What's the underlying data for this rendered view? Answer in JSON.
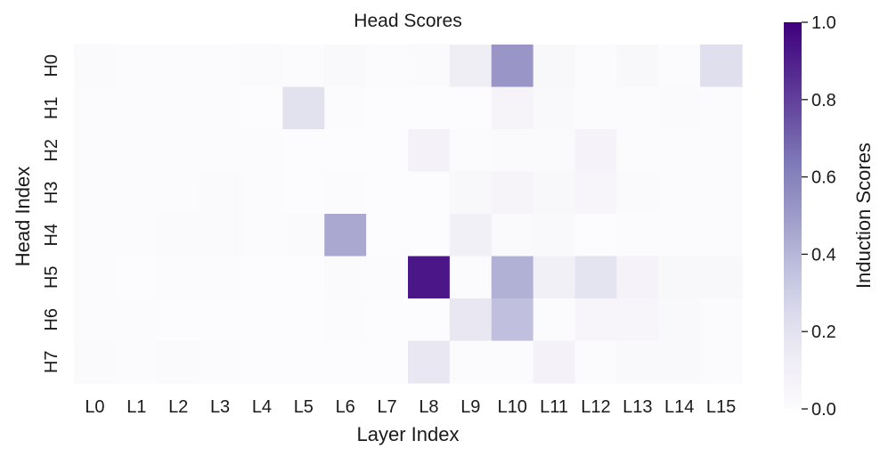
{
  "chart_data": {
    "type": "heatmap",
    "title": "Head Scores",
    "xlabel": "Layer Index",
    "ylabel": "Head Index",
    "x_categories": [
      "L0",
      "L1",
      "L2",
      "L3",
      "L4",
      "L5",
      "L6",
      "L7",
      "L8",
      "L9",
      "L10",
      "L11",
      "L12",
      "L13",
      "L14",
      "L15"
    ],
    "y_categories": [
      "H0",
      "H1",
      "H2",
      "H3",
      "H4",
      "H5",
      "H6",
      "H7"
    ],
    "values": [
      [
        0.02,
        0.01,
        0.01,
        0.01,
        0.02,
        0.01,
        0.03,
        0.01,
        0.02,
        0.12,
        0.52,
        0.04,
        0.01,
        0.04,
        0.01,
        0.22
      ],
      [
        0.01,
        0.01,
        0.01,
        0.01,
        0.0,
        0.2,
        0.01,
        0.0,
        0.0,
        0.0,
        0.06,
        0.03,
        0.01,
        0.01,
        0.02,
        0.01
      ],
      [
        0.01,
        0.01,
        0.01,
        0.01,
        0.01,
        0.0,
        0.0,
        0.0,
        0.08,
        0.01,
        0.02,
        0.02,
        0.07,
        0.01,
        0.01,
        0.01
      ],
      [
        0.01,
        0.01,
        0.01,
        0.02,
        0.01,
        0.0,
        0.01,
        0.0,
        0.0,
        0.04,
        0.06,
        0.04,
        0.05,
        0.02,
        0.01,
        0.01
      ],
      [
        0.01,
        0.01,
        0.02,
        0.02,
        0.01,
        0.02,
        0.45,
        0.0,
        0.0,
        0.1,
        0.02,
        0.03,
        0.0,
        0.01,
        0.01,
        0.01
      ],
      [
        0.01,
        0.0,
        0.01,
        0.01,
        0.0,
        0.0,
        0.02,
        0.01,
        0.93,
        0.01,
        0.42,
        0.1,
        0.19,
        0.07,
        0.04,
        0.04
      ],
      [
        0.01,
        0.01,
        0.0,
        0.0,
        0.0,
        0.0,
        0.01,
        0.0,
        0.0,
        0.16,
        0.36,
        0.01,
        0.05,
        0.05,
        0.03,
        0.01
      ],
      [
        0.02,
        0.01,
        0.02,
        0.01,
        0.0,
        0.0,
        0.0,
        0.0,
        0.16,
        0.01,
        0.01,
        0.08,
        0.01,
        0.03,
        0.03,
        0.01
      ]
    ],
    "colorbar": {
      "label": "Induction Scores",
      "range": [
        0.0,
        1.0
      ],
      "ticks": [
        0.0,
        0.2,
        0.4,
        0.6,
        0.8,
        1.0
      ],
      "tick_labels": [
        "0.0",
        "0.2",
        "0.4",
        "0.6",
        "0.8",
        "1.0"
      ],
      "colormap": "Purples",
      "color_low": "#fcfbfd",
      "color_high": "#3f007d"
    },
    "grid": false
  }
}
